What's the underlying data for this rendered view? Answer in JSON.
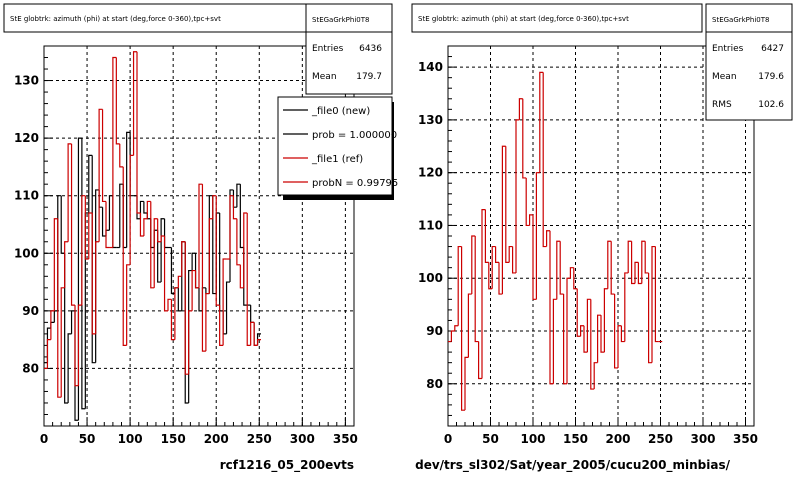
{
  "colors": {
    "new": "#000000",
    "ref": "#cc0000"
  },
  "chart_data": [
    {
      "type": "line",
      "title": "StE globtrk: azimuth (phi) at start (deg,force 0-360),tpc+svt",
      "xlabel": "rcf1216_05_200evts",
      "xlim": [
        0,
        360
      ],
      "ylim": [
        70,
        136
      ],
      "xticks": [
        "0",
        "50",
        "100",
        "150",
        "200",
        "250",
        "300",
        "350"
      ],
      "yticks": [
        "80",
        "90",
        "100",
        "110",
        "120",
        "130"
      ],
      "grid": true,
      "stats": {
        "name": "StEGaGrkPhi0T8",
        "rows": [
          {
            "label": "Entries",
            "value": "6436"
          },
          {
            "label": "Mean",
            "value": "179.7"
          }
        ]
      },
      "legend": {
        "position": "top-right",
        "entries": [
          {
            "label": "_file0 (new)",
            "color": "#000000"
          },
          {
            "label": "prob = 1.000000",
            "color": "#000000"
          },
          {
            "label": "_file1 (ref)",
            "color": "#cc0000"
          },
          {
            "label": "probN = 0.99795",
            "color": "#cc0000"
          }
        ]
      },
      "bin_width": 4,
      "x_start": 0,
      "series": [
        {
          "name": "_file0 (new)",
          "color": "#000000",
          "values": [
            81,
            87,
            88,
            90,
            110,
            100,
            74,
            86,
            90,
            71,
            120,
            73,
            107,
            117,
            81,
            111,
            108,
            103,
            104,
            110,
            101,
            101,
            112,
            101,
            121,
            110,
            110,
            106,
            109,
            107,
            106,
            101,
            104,
            95,
            106,
            101,
            101,
            93,
            94,
            90,
            102,
            74,
            97,
            100,
            94,
            90,
            94,
            93,
            110,
            93,
            107,
            90,
            86,
            95,
            111,
            108,
            112,
            101,
            91,
            91,
            88,
            84,
            86
          ]
        },
        {
          "name": "_file1 (ref)",
          "color": "#cc0000",
          "values": [
            80,
            85,
            90,
            106,
            75,
            94,
            102,
            119,
            91,
            77,
            91,
            110,
            99,
            107,
            86,
            102,
            125,
            109,
            101,
            101,
            134,
            119,
            115,
            84,
            98,
            117,
            135,
            107,
            103,
            106,
            109,
            94,
            106,
            102,
            103,
            90,
            92,
            85,
            94,
            96,
            102,
            79,
            90,
            97,
            94,
            112,
            83,
            93,
            106,
            110,
            91,
            84,
            99,
            99,
            110,
            106,
            98,
            94,
            107,
            84,
            88,
            84,
            85
          ]
        }
      ]
    },
    {
      "type": "line",
      "title": "StE globtrk: azimuth (phi) at start (deg,force 0-360),tpc+svt",
      "xlabel": "dev/trs_sl302/Sat/year_2005/cucu200_minbias/",
      "xlim": [
        0,
        360
      ],
      "ylim": [
        72,
        144
      ],
      "xticks": [
        "0",
        "50",
        "100",
        "150",
        "200",
        "250",
        "300",
        "350"
      ],
      "yticks": [
        "80",
        "90",
        "100",
        "110",
        "120",
        "130",
        "140"
      ],
      "grid": true,
      "stats": {
        "name": "StEGaGrkPhi0T8",
        "rows": [
          {
            "label": "Entries",
            "value": "6427"
          },
          {
            "label": "Mean",
            "value": "179.6"
          },
          {
            "label": "RMS",
            "value": "102.6"
          }
        ]
      },
      "bin_width": 4,
      "x_start": 0,
      "series": [
        {
          "name": "_file1 (ref)",
          "color": "#cc0000",
          "values": [
            88,
            90,
            91,
            106,
            75,
            85,
            97,
            108,
            88,
            81,
            113,
            103,
            98,
            106,
            103,
            97,
            125,
            103,
            106,
            101,
            130,
            134,
            119,
            110,
            112,
            96,
            120,
            139,
            106,
            109,
            80,
            96,
            107,
            97,
            80,
            100,
            102,
            98,
            89,
            91,
            86,
            96,
            79,
            84,
            93,
            86,
            98,
            107,
            97,
            83,
            91,
            88,
            101,
            107,
            99,
            103,
            99,
            107,
            101,
            84,
            106,
            88,
            88
          ]
        }
      ]
    }
  ]
}
